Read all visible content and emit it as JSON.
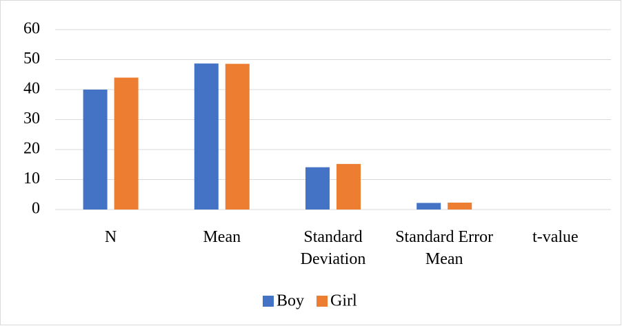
{
  "chart_data": {
    "type": "bar",
    "categories": [
      "N",
      "Mean",
      "Standard Deviation",
      "Standard Error Mean",
      "t-value"
    ],
    "series": [
      {
        "name": "Boy",
        "color": "#4472c4",
        "values": [
          40,
          48.7,
          14.1,
          2.2,
          0
        ]
      },
      {
        "name": "Girl",
        "color": "#ed7d31",
        "values": [
          44,
          48.6,
          15.2,
          2.3,
          0
        ]
      }
    ],
    "ylim": [
      0,
      60
    ],
    "yticks": [
      0,
      10,
      20,
      30,
      40,
      50,
      60
    ],
    "grid": true,
    "legend": "bottom"
  }
}
